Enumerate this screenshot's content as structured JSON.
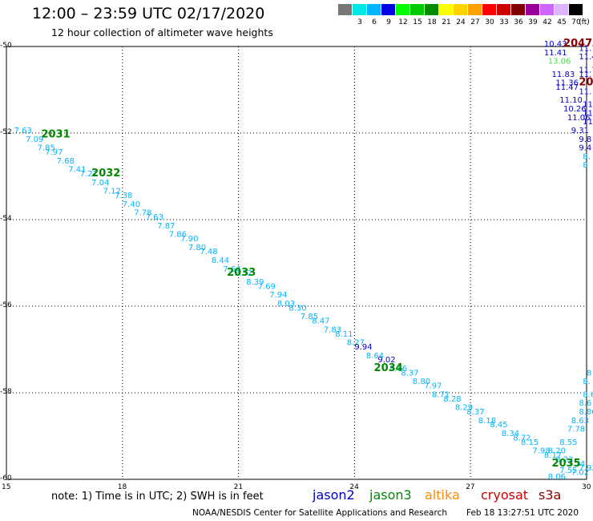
{
  "header": {
    "title": "12:00 – 23:59 UTC 02/17/2020",
    "subtitle": "12 hour collection of altimeter wave heights"
  },
  "legend": {
    "unit": "(ft)",
    "entries": [
      {
        "label": "",
        "color": "#777777"
      },
      {
        "label": "3",
        "color": "#00e5e5"
      },
      {
        "label": "6",
        "color": "#00b4ff"
      },
      {
        "label": "9",
        "color": "#0000e6"
      },
      {
        "label": "12",
        "color": "#00ff00"
      },
      {
        "label": "15",
        "color": "#00cc00"
      },
      {
        "label": "18",
        "color": "#008c00"
      },
      {
        "label": "21",
        "color": "#ffff00"
      },
      {
        "label": "24",
        "color": "#ffd200"
      },
      {
        "label": "27",
        "color": "#ffa000"
      },
      {
        "label": "30",
        "color": "#ff0000"
      },
      {
        "label": "33",
        "color": "#cc0000"
      },
      {
        "label": "36",
        "color": "#800000"
      },
      {
        "label": "39",
        "color": "#990099"
      },
      {
        "label": "42",
        "color": "#cc66ff"
      },
      {
        "label": "45",
        "color": "#dcb4ff"
      },
      {
        "label": "70",
        "color": "#000000"
      }
    ]
  },
  "axes": {
    "x_ticks": [
      "15",
      "18",
      "21",
      "24",
      "27",
      "30"
    ],
    "y_ticks": [
      "-50",
      "-52",
      "-54",
      "-56",
      "-58",
      "-60"
    ]
  },
  "map_view": {
    "lon_range": [
      15,
      30
    ],
    "lat_range": [
      -60,
      -50
    ]
  },
  "track_colors": {
    "jason2": "#0000cc",
    "jason3": "#008800",
    "cryosat": "#cc0000",
    "s3a": "#880000"
  },
  "time_labels": [
    {
      "text": "2031",
      "lon": 15.9,
      "lat": -52.1,
      "color": "#008800"
    },
    {
      "text": "2032",
      "lon": 17.2,
      "lat": -53.0,
      "color": "#008800"
    },
    {
      "text": "2033",
      "lon": 20.7,
      "lat": -55.3,
      "color": "#008800"
    },
    {
      "text": "2034",
      "lon": 24.5,
      "lat": -57.5,
      "color": "#008800"
    },
    {
      "text": "2035",
      "lon": 29.1,
      "lat": -59.7,
      "color": "#008800"
    },
    {
      "text": "2047",
      "lon": 29.4,
      "lat": -50.0,
      "color": "#880000"
    },
    {
      "text": "20",
      "lon": 29.8,
      "lat": -50.9,
      "color": "#880000"
    }
  ],
  "track_main": [
    {
      "v": "7.63",
      "lon": 15.2,
      "lat": -52.0,
      "c": "#00b4ff"
    },
    {
      "v": "7.09",
      "lon": 15.5,
      "lat": -52.2,
      "c": "#00b4ff"
    },
    {
      "v": "7.85",
      "lon": 15.8,
      "lat": -52.4,
      "c": "#00b4ff"
    },
    {
      "v": "7.97",
      "lon": 16.0,
      "lat": -52.5,
      "c": "#00b4ff"
    },
    {
      "v": "7.68",
      "lon": 16.3,
      "lat": -52.7,
      "c": "#00b4ff"
    },
    {
      "v": "7.41",
      "lon": 16.6,
      "lat": -52.9,
      "c": "#00b4ff"
    },
    {
      "v": "7.21",
      "lon": 16.9,
      "lat": -53.0,
      "c": "#00b4ff"
    },
    {
      "v": "7.04",
      "lon": 17.2,
      "lat": -53.2,
      "c": "#00b4ff"
    },
    {
      "v": "7.12",
      "lon": 17.5,
      "lat": -53.4,
      "c": "#00b4ff"
    },
    {
      "v": "7.38",
      "lon": 17.8,
      "lat": -53.5,
      "c": "#00b4ff"
    },
    {
      "v": "7.40",
      "lon": 18.0,
      "lat": -53.7,
      "c": "#00b4ff"
    },
    {
      "v": "7.78",
      "lon": 18.3,
      "lat": -53.9,
      "c": "#00b4ff"
    },
    {
      "v": "7.63",
      "lon": 18.6,
      "lat": -54.0,
      "c": "#00b4ff"
    },
    {
      "v": "7.87",
      "lon": 18.9,
      "lat": -54.2,
      "c": "#00b4ff"
    },
    {
      "v": "7.86",
      "lon": 19.2,
      "lat": -54.4,
      "c": "#00b4ff"
    },
    {
      "v": "7.90",
      "lon": 19.5,
      "lat": -54.5,
      "c": "#00b4ff"
    },
    {
      "v": "7.80",
      "lon": 19.7,
      "lat": -54.7,
      "c": "#00b4ff"
    },
    {
      "v": "7.48",
      "lon": 20.0,
      "lat": -54.8,
      "c": "#00b4ff"
    },
    {
      "v": "8.44",
      "lon": 20.3,
      "lat": -55.0,
      "c": "#00b4ff"
    },
    {
      "v": "7.64",
      "lon": 20.6,
      "lat": -55.2,
      "c": "#00b4ff"
    },
    {
      "v": "8.52",
      "lon": 20.9,
      "lat": -55.3,
      "c": "#00b4ff"
    },
    {
      "v": "8.39",
      "lon": 21.2,
      "lat": -55.5,
      "c": "#00b4ff"
    },
    {
      "v": "7.69",
      "lon": 21.5,
      "lat": -55.6,
      "c": "#00b4ff"
    },
    {
      "v": "7.94",
      "lon": 21.8,
      "lat": -55.8,
      "c": "#00b4ff"
    },
    {
      "v": "8.03",
      "lon": 22.0,
      "lat": -56.0,
      "c": "#00b4ff"
    },
    {
      "v": "8.30",
      "lon": 22.3,
      "lat": -56.1,
      "c": "#00b4ff"
    },
    {
      "v": "7.85",
      "lon": 22.6,
      "lat": -56.3,
      "c": "#00b4ff"
    },
    {
      "v": "8.47",
      "lon": 22.9,
      "lat": -56.4,
      "c": "#00b4ff"
    },
    {
      "v": "7.83",
      "lon": 23.2,
      "lat": -56.6,
      "c": "#00b4ff"
    },
    {
      "v": "8.11",
      "lon": 23.5,
      "lat": -56.7,
      "c": "#00b4ff"
    },
    {
      "v": "8.27",
      "lon": 23.8,
      "lat": -56.9,
      "c": "#00b4ff"
    },
    {
      "v": "9.94",
      "lon": 24.0,
      "lat": -57.0,
      "c": "#0000cc"
    },
    {
      "v": "8.64",
      "lon": 24.3,
      "lat": -57.2,
      "c": "#00b4ff"
    },
    {
      "v": "9.02",
      "lon": 24.6,
      "lat": -57.3,
      "c": "#0000cc"
    },
    {
      "v": "8.86",
      "lon": 24.9,
      "lat": -57.5,
      "c": "#00b4ff"
    },
    {
      "v": "8.37",
      "lon": 25.2,
      "lat": -57.6,
      "c": "#00b4ff"
    },
    {
      "v": "8.80",
      "lon": 25.5,
      "lat": -57.8,
      "c": "#00b4ff"
    },
    {
      "v": "7.97",
      "lon": 25.8,
      "lat": -57.9,
      "c": "#00b4ff"
    },
    {
      "v": "8.71",
      "lon": 26.0,
      "lat": -58.1,
      "c": "#00b4ff"
    },
    {
      "v": "8.28",
      "lon": 26.3,
      "lat": -58.2,
      "c": "#00b4ff"
    },
    {
      "v": "8.29",
      "lon": 26.6,
      "lat": -58.4,
      "c": "#00b4ff"
    },
    {
      "v": "8.37",
      "lon": 26.9,
      "lat": -58.5,
      "c": "#00b4ff"
    },
    {
      "v": "8.18",
      "lon": 27.2,
      "lat": -58.7,
      "c": "#00b4ff"
    },
    {
      "v": "8.45",
      "lon": 27.5,
      "lat": -58.8,
      "c": "#00b4ff"
    },
    {
      "v": "8.34",
      "lon": 27.8,
      "lat": -59.0,
      "c": "#00b4ff"
    },
    {
      "v": "8.72",
      "lon": 28.1,
      "lat": -59.1,
      "c": "#00b4ff"
    },
    {
      "v": "8.15",
      "lon": 28.3,
      "lat": -59.2,
      "c": "#00b4ff"
    },
    {
      "v": "7.98",
      "lon": 28.6,
      "lat": -59.4,
      "c": "#00b4ff"
    },
    {
      "v": "8.17",
      "lon": 28.9,
      "lat": -59.5,
      "c": "#00b4ff"
    },
    {
      "v": "8.22",
      "lon": 29.2,
      "lat": -59.6,
      "c": "#00b4ff"
    },
    {
      "v": "7.74",
      "lon": 29.5,
      "lat": -59.7,
      "c": "#00b4ff"
    },
    {
      "v": "7.92",
      "lon": 29.8,
      "lat": -59.8,
      "c": "#00b4ff"
    }
  ],
  "track_right_upper": [
    {
      "v": "10.43",
      "lon": 28.9,
      "lat": -50.0,
      "c": "#0000cc"
    },
    {
      "v": "11.7",
      "lon": 29.8,
      "lat": -50.1,
      "c": "#0000cc"
    },
    {
      "v": "11.41",
      "lon": 28.9,
      "lat": -50.2,
      "c": "#0000cc"
    },
    {
      "v": "11.4",
      "lon": 29.8,
      "lat": -50.3,
      "c": "#0000cc"
    },
    {
      "v": "13.06",
      "lon": 29.0,
      "lat": -50.4,
      "c": "#44dd44"
    },
    {
      "v": "11.7",
      "lon": 29.8,
      "lat": -50.6,
      "c": "#0000cc"
    },
    {
      "v": "11.83",
      "lon": 29.1,
      "lat": -50.7,
      "c": "#0000cc"
    },
    {
      "v": "11.",
      "lon": 29.8,
      "lat": -50.7,
      "c": "#0000cc"
    },
    {
      "v": "11.36",
      "lon": 29.2,
      "lat": -50.9,
      "c": "#0000cc"
    },
    {
      "v": "11.47",
      "lon": 29.2,
      "lat": -51.0,
      "c": "#0000cc"
    },
    {
      "v": "11.",
      "lon": 29.8,
      "lat": -51.1,
      "c": "#0000cc"
    },
    {
      "v": "11.10",
      "lon": 29.3,
      "lat": -51.3,
      "c": "#0000cc"
    },
    {
      "v": "11",
      "lon": 29.9,
      "lat": -51.4,
      "c": "#0000cc"
    },
    {
      "v": "10.26",
      "lon": 29.4,
      "lat": -51.5,
      "c": "#0000cc"
    },
    {
      "v": "11",
      "lon": 29.9,
      "lat": -51.6,
      "c": "#0000cc"
    },
    {
      "v": "11.06",
      "lon": 29.5,
      "lat": -51.7,
      "c": "#0000cc"
    },
    {
      "v": "11",
      "lon": 29.9,
      "lat": -51.8,
      "c": "#0000cc"
    },
    {
      "v": "9.31",
      "lon": 29.6,
      "lat": -52.0,
      "c": "#0000cc"
    },
    {
      "v": "9.8",
      "lon": 29.8,
      "lat": -52.2,
      "c": "#0000cc"
    },
    {
      "v": "9.4",
      "lon": 29.8,
      "lat": -52.4,
      "c": "#0000cc"
    },
    {
      "v": "8.",
      "lon": 29.9,
      "lat": -52.6,
      "c": "#00b4ff"
    },
    {
      "v": "8",
      "lon": 29.9,
      "lat": -52.8,
      "c": "#00b4ff"
    }
  ],
  "track_right_lower": [
    {
      "v": "8",
      "lon": 30.0,
      "lat": -57.6,
      "c": "#00b4ff"
    },
    {
      "v": "8.",
      "lon": 29.9,
      "lat": -57.8,
      "c": "#00b4ff"
    },
    {
      "v": "8.6",
      "lon": 29.9,
      "lat": -58.1,
      "c": "#00b4ff"
    },
    {
      "v": "8.6",
      "lon": 29.8,
      "lat": -58.3,
      "c": "#00b4ff"
    },
    {
      "v": "8.86",
      "lon": 29.8,
      "lat": -58.5,
      "c": "#00b4ff"
    },
    {
      "v": "8.63",
      "lon": 29.6,
      "lat": -58.7,
      "c": "#00b4ff"
    },
    {
      "v": "7.78",
      "lon": 29.5,
      "lat": -58.9,
      "c": "#00b4ff"
    },
    {
      "v": "8.55",
      "lon": 29.3,
      "lat": -59.2,
      "c": "#00b4ff"
    },
    {
      "v": "8.20",
      "lon": 29.0,
      "lat": -59.4,
      "c": "#00b4ff"
    },
    {
      "v": "7.55",
      "lon": 29.3,
      "lat": -59.85,
      "c": "#00b4ff"
    },
    {
      "v": "7.02",
      "lon": 29.6,
      "lat": -59.9,
      "c": "#00b4ff"
    },
    {
      "v": "8.06",
      "lon": 29.0,
      "lat": -60.0,
      "c": "#00b4ff"
    }
  ],
  "footer": {
    "note": "note:  1) Time is in UTC; 2) SWH is in feet",
    "satellites": [
      {
        "name": "jason2",
        "color": "#0000cc"
      },
      {
        "name": "jason3",
        "color": "#008800"
      },
      {
        "name": "altika",
        "color": "#ff8800"
      },
      {
        "name": "cryosat",
        "color": "#cc0000"
      },
      {
        "name": "s3a",
        "color": "#880000"
      }
    ],
    "credit": "NOAA/NESDIS Center for Satellite Applications and Research",
    "timestamp": "Feb 18 13:27:51 UTC 2020"
  }
}
